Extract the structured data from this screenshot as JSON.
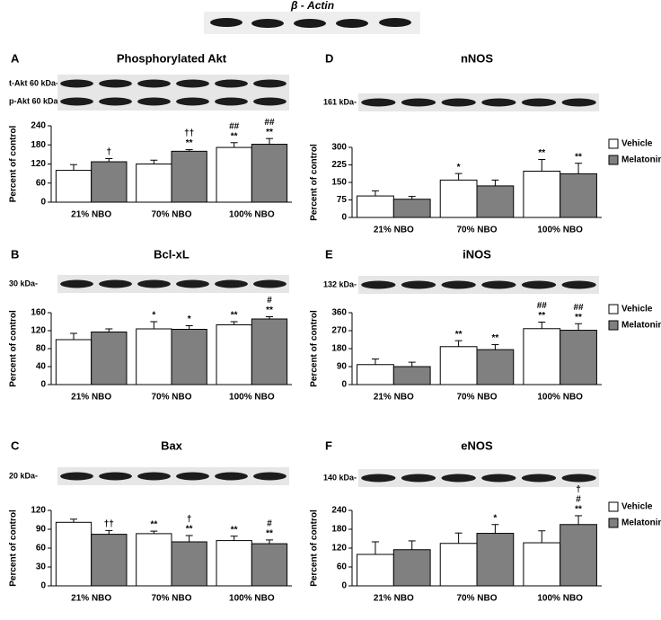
{
  "header": {
    "title": "β - Actin"
  },
  "chart_data": [
    {
      "type": "bar",
      "panel": "A",
      "title": "Phosphorylated Akt",
      "blot_labels": [
        "t-Akt 60 kDa-",
        "p-Akt 60 kDa-"
      ],
      "ylabel": "Percent of control",
      "categories": [
        "21% NBO",
        "70% NBO",
        "100% NBO"
      ],
      "ylim": [
        0,
        240
      ],
      "yticks": [
        0,
        60,
        120,
        180,
        240
      ],
      "series": [
        {
          "color": "#ffffff",
          "values": [
            100,
            120,
            172
          ],
          "errors": [
            18,
            12,
            15
          ],
          "annotations": [
            null,
            null,
            [
              "##",
              "**"
            ]
          ]
        },
        {
          "color": "#808080",
          "values": [
            127,
            160,
            182
          ],
          "errors": [
            10,
            5,
            18
          ],
          "annotations": [
            [
              "†"
            ],
            [
              "††",
              "**"
            ],
            [
              "##",
              "**"
            ]
          ]
        }
      ]
    },
    {
      "type": "bar",
      "panel": "B",
      "title": "Bcl-xL",
      "blot_labels": [
        "30 kDa-"
      ],
      "ylabel": "Percent of control",
      "categories": [
        "21% NBO",
        "70% NBO",
        "100% NBO"
      ],
      "ylim": [
        0,
        160
      ],
      "yticks": [
        0,
        40,
        80,
        120,
        160
      ],
      "series": [
        {
          "color": "#ffffff",
          "values": [
            100,
            124,
            133
          ],
          "errors": [
            14,
            16,
            7
          ],
          "annotations": [
            null,
            [
              "*"
            ],
            [
              "**"
            ]
          ]
        },
        {
          "color": "#808080",
          "values": [
            117,
            123,
            146
          ],
          "errors": [
            7,
            8,
            5
          ],
          "annotations": [
            null,
            [
              "*"
            ],
            [
              "#",
              "**"
            ]
          ]
        }
      ]
    },
    {
      "type": "bar",
      "panel": "C",
      "title": "Bax",
      "blot_labels": [
        "20 kDa-"
      ],
      "ylabel": "Percent of control",
      "categories": [
        "21% NBO",
        "70% NBO",
        "100% NBO"
      ],
      "ylim": [
        0,
        120
      ],
      "yticks": [
        0,
        30,
        60,
        90,
        120
      ],
      "series": [
        {
          "color": "#ffffff",
          "values": [
            101,
            83,
            72
          ],
          "errors": [
            5,
            4,
            7
          ],
          "annotations": [
            null,
            [
              "**"
            ],
            [
              "**"
            ]
          ]
        },
        {
          "color": "#808080",
          "values": [
            82,
            70,
            67
          ],
          "errors": [
            6,
            10,
            6
          ],
          "annotations": [
            [
              "††"
            ],
            [
              "†",
              "**"
            ],
            [
              "#",
              "**"
            ]
          ]
        }
      ]
    },
    {
      "type": "bar",
      "panel": "D",
      "title": "nNOS",
      "blot_labels": [
        "161 kDa-"
      ],
      "ylabel": "Percent of control",
      "categories": [
        "21% NBO",
        "70% NBO",
        "100% NBO"
      ],
      "ylim": [
        0,
        300
      ],
      "yticks": [
        0,
        75,
        150,
        225,
        300
      ],
      "legend": "right",
      "series": [
        {
          "name": "Vehicle",
          "color": "#ffffff",
          "values": [
            92,
            160,
            198
          ],
          "errors": [
            22,
            28,
            50
          ],
          "annotations": [
            null,
            [
              "*"
            ],
            [
              "**"
            ]
          ]
        },
        {
          "name": "Melatonin",
          "color": "#808080",
          "values": [
            78,
            135,
            187
          ],
          "errors": [
            12,
            25,
            45
          ],
          "annotations": [
            null,
            null,
            [
              "**"
            ]
          ]
        }
      ]
    },
    {
      "type": "bar",
      "panel": "E",
      "title": "iNOS",
      "blot_labels": [
        "132 kDa-"
      ],
      "ylabel": "Percent of control",
      "categories": [
        "21% NBO",
        "70% NBO",
        "100% NBO"
      ],
      "ylim": [
        0,
        360
      ],
      "yticks": [
        0,
        90,
        180,
        270,
        360
      ],
      "legend": "right",
      "series": [
        {
          "name": "Vehicle",
          "color": "#ffffff",
          "values": [
            100,
            190,
            280
          ],
          "errors": [
            28,
            30,
            33
          ],
          "annotations": [
            null,
            [
              "**"
            ],
            [
              "##",
              "**"
            ]
          ]
        },
        {
          "name": "Melatonin",
          "color": "#808080",
          "values": [
            90,
            175,
            272
          ],
          "errors": [
            22,
            25,
            33
          ],
          "annotations": [
            null,
            [
              "**"
            ],
            [
              "##",
              "**"
            ]
          ]
        }
      ]
    },
    {
      "type": "bar",
      "panel": "F",
      "title": "eNOS",
      "blot_labels": [
        "140 kDa-"
      ],
      "ylabel": "Percent of control",
      "categories": [
        "21% NBO",
        "70% NBO",
        "100% NBO"
      ],
      "ylim": [
        0,
        240
      ],
      "yticks": [
        0,
        60,
        120,
        180,
        240
      ],
      "legend": "right",
      "series": [
        {
          "name": "Vehicle",
          "color": "#ffffff",
          "values": [
            100,
            135,
            137
          ],
          "errors": [
            40,
            33,
            38
          ],
          "annotations": [
            null,
            null,
            null
          ]
        },
        {
          "name": "Melatonin",
          "color": "#808080",
          "values": [
            115,
            167,
            195
          ],
          "errors": [
            28,
            28,
            28
          ],
          "annotations": [
            null,
            [
              "*"
            ],
            [
              "†",
              "#",
              "**"
            ]
          ]
        }
      ]
    }
  ]
}
